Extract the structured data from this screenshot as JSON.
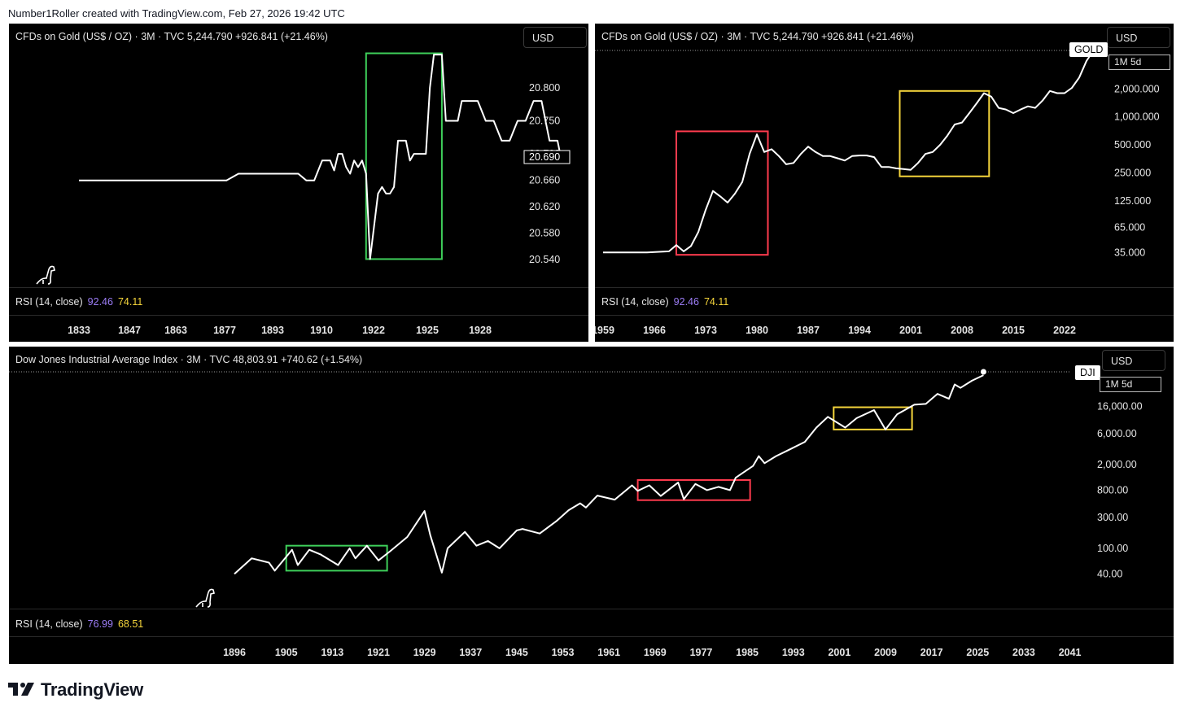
{
  "attribution": "Number1Roller created with TradingView.com, Feb 27, 2026 19:42 UTC",
  "brand": "TradingView",
  "colors": {
    "background": "#000000",
    "line": "#ffffff",
    "green": "#3ecf5a",
    "red": "#ff3b4e",
    "yellow": "#f5d53b",
    "rsi_purple": "#9c7df6",
    "rsi_yellow": "#f5d53b"
  },
  "panels": {
    "gold_early": {
      "header": "CFDs on Gold (US$ / OZ) · 3M · TVC  5,244.790  +926.841 (+21.46%)",
      "currency": "USD",
      "rsi_label": "RSI (14, close)",
      "rsi_value_1": "92.46",
      "rsi_value_2": "74.11",
      "last_price_label": "20.690",
      "highlight_icon": "dinosaur-icon"
    },
    "gold_modern": {
      "header": "CFDs on Gold (US$ / OZ) · 3M · TVC  5,244.790  +926.841 (+21.46%)",
      "currency": "USD",
      "symbol_label": "GOLD",
      "interval_label": "1M 5d",
      "rsi_label": "RSI (14, close)",
      "rsi_value_1": "92.46",
      "rsi_value_2": "74.11"
    },
    "dji": {
      "header": "Dow Jones Industrial Average Index · 3M · TVC  48,803.91  +740.62 (+1.54%)",
      "currency": "USD",
      "symbol_label": "DJI",
      "interval_label": "1M 5d",
      "rsi_label": "RSI (14, close)",
      "rsi_value_1": "76.99",
      "rsi_value_2": "68.51",
      "highlight_icon": "dinosaur-icon"
    }
  },
  "chart_data": [
    {
      "id": "gold_early",
      "type": "line",
      "series_name": "CFDs on Gold (US$ / OZ)",
      "x_ticks": [
        "1833",
        "1847",
        "1863",
        "1877",
        "1893",
        "1910",
        "1922",
        "1925",
        "1928"
      ],
      "y_ticks": [
        "20.800",
        "20.750",
        "20.700",
        "20.660",
        "20.620",
        "20.580",
        "20.540"
      ],
      "ylim": [
        20.528,
        20.86
      ],
      "points": [
        [
          0,
          20.66
        ],
        [
          10,
          20.66
        ],
        [
          20,
          20.66
        ],
        [
          30,
          20.66
        ],
        [
          37,
          20.66
        ],
        [
          40,
          20.67
        ],
        [
          50,
          20.67
        ],
        [
          55,
          20.67
        ],
        [
          57,
          20.66
        ],
        [
          59,
          20.66
        ],
        [
          61,
          20.69
        ],
        [
          63,
          20.69
        ],
        [
          64,
          20.675
        ],
        [
          65,
          20.7
        ],
        [
          66,
          20.7
        ],
        [
          67,
          20.68
        ],
        [
          68,
          20.67
        ],
        [
          69,
          20.69
        ],
        [
          70,
          20.68
        ],
        [
          71,
          20.69
        ],
        [
          72,
          20.67
        ],
        [
          73,
          20.541
        ],
        [
          75,
          20.64
        ],
        [
          76,
          20.65
        ],
        [
          77,
          20.64
        ],
        [
          78,
          20.64
        ],
        [
          79,
          20.65
        ],
        [
          80,
          20.72
        ],
        [
          81,
          20.72
        ],
        [
          82,
          20.72
        ],
        [
          83,
          20.69
        ],
        [
          84,
          20.7
        ],
        [
          85,
          20.7
        ],
        [
          86,
          20.7
        ],
        [
          87,
          20.7
        ],
        [
          88,
          20.8
        ],
        [
          89,
          20.85
        ],
        [
          90,
          20.85
        ],
        [
          91,
          20.85
        ],
        [
          92,
          20.75
        ],
        [
          94,
          20.75
        ],
        [
          95,
          20.75
        ],
        [
          96,
          20.78
        ],
        [
          98,
          20.78
        ],
        [
          100,
          20.78
        ],
        [
          102,
          20.75
        ],
        [
          104,
          20.75
        ],
        [
          106,
          20.72
        ],
        [
          108,
          20.72
        ],
        [
          110,
          20.75
        ],
        [
          112,
          20.75
        ],
        [
          114,
          20.78
        ],
        [
          116,
          20.78
        ],
        [
          118,
          20.72
        ],
        [
          120,
          20.72
        ],
        [
          121,
          20.69
        ]
      ],
      "highlights": [
        {
          "color": "green",
          "x_range": [
            72,
            91
          ],
          "y_range": [
            20.541,
            20.852
          ]
        }
      ]
    },
    {
      "id": "gold_modern",
      "type": "line",
      "scale": "log",
      "series_name": "CFDs on Gold (US$ / OZ)",
      "x_ticks": [
        "1959",
        "1966",
        "1973",
        "1980",
        "1987",
        "1994",
        "2001",
        "2008",
        "2015",
        "2022"
      ],
      "y_ticks": [
        "2,000.000",
        "1,000.000",
        "500.000",
        "250.000",
        "125.000",
        "65.000",
        "35.000"
      ],
      "ylim": [
        24,
        5500
      ],
      "points": [
        [
          1959,
          35
        ],
        [
          1965,
          35
        ],
        [
          1968,
          36
        ],
        [
          1969,
          42
        ],
        [
          1970,
          36
        ],
        [
          1971,
          41
        ],
        [
          1972,
          58
        ],
        [
          1973,
          100
        ],
        [
          1974,
          160
        ],
        [
          1975,
          140
        ],
        [
          1976,
          120
        ],
        [
          1977,
          150
        ],
        [
          1978,
          200
        ],
        [
          1979,
          400
        ],
        [
          1980,
          650
        ],
        [
          1981,
          420
        ],
        [
          1982,
          450
        ],
        [
          1983,
          380
        ],
        [
          1984,
          310
        ],
        [
          1985,
          320
        ],
        [
          1986,
          400
        ],
        [
          1987,
          480
        ],
        [
          1988,
          420
        ],
        [
          1989,
          380
        ],
        [
          1990,
          380
        ],
        [
          1991,
          360
        ],
        [
          1992,
          340
        ],
        [
          1993,
          380
        ],
        [
          1994,
          385
        ],
        [
          1995,
          385
        ],
        [
          1996,
          370
        ],
        [
          1997,
          290
        ],
        [
          1998,
          290
        ],
        [
          1999,
          280
        ],
        [
          2000,
          275
        ],
        [
          2001,
          270
        ],
        [
          2002,
          320
        ],
        [
          2003,
          400
        ],
        [
          2004,
          420
        ],
        [
          2005,
          500
        ],
        [
          2006,
          630
        ],
        [
          2007,
          830
        ],
        [
          2008,
          870
        ],
        [
          2009,
          1100
        ],
        [
          2010,
          1400
        ],
        [
          2011,
          1800
        ],
        [
          2012,
          1650
        ],
        [
          2013,
          1250
        ],
        [
          2014,
          1200
        ],
        [
          2015,
          1100
        ],
        [
          2016,
          1200
        ],
        [
          2017,
          1300
        ],
        [
          2018,
          1250
        ],
        [
          2019,
          1500
        ],
        [
          2020,
          1900
        ],
        [
          2021,
          1800
        ],
        [
          2022,
          1800
        ],
        [
          2023,
          2050
        ],
        [
          2024,
          2650
        ],
        [
          2025,
          4000
        ],
        [
          2026,
          5245
        ]
      ],
      "highlights": [
        {
          "color": "red",
          "x_range": [
            1969,
            1981.5
          ],
          "y_range": [
            33,
            700
          ]
        },
        {
          "color": "yellow",
          "x_range": [
            1999.5,
            2011.7
          ],
          "y_range": [
            230,
            1900
          ]
        }
      ]
    },
    {
      "id": "dji",
      "type": "line",
      "scale": "log",
      "series_name": "Dow Jones Industrial Average Index",
      "x_ticks": [
        "1896",
        "1905",
        "1913",
        "1921",
        "1929",
        "1937",
        "1945",
        "1953",
        "1961",
        "1969",
        "1977",
        "1985",
        "1993",
        "2001",
        "2009",
        "2017",
        "2025",
        "2033",
        "2041"
      ],
      "y_ticks": [
        "16,000.00",
        "6,000.00",
        "2,000.00",
        "800.00",
        "300.00",
        "100.00",
        "40.00"
      ],
      "ylim": [
        22,
        60000
      ],
      "points": [
        [
          1896,
          40
        ],
        [
          1899,
          70
        ],
        [
          1902,
          60
        ],
        [
          1903,
          45
        ],
        [
          1906,
          95
        ],
        [
          1907,
          55
        ],
        [
          1909,
          95
        ],
        [
          1911,
          80
        ],
        [
          1914,
          55
        ],
        [
          1916,
          100
        ],
        [
          1917,
          70
        ],
        [
          1919,
          110
        ],
        [
          1921,
          65
        ],
        [
          1923,
          90
        ],
        [
          1926,
          150
        ],
        [
          1929,
          380
        ],
        [
          1930,
          160
        ],
        [
          1932,
          42
        ],
        [
          1933,
          100
        ],
        [
          1936,
          180
        ],
        [
          1938,
          110
        ],
        [
          1940,
          130
        ],
        [
          1942,
          100
        ],
        [
          1945,
          190
        ],
        [
          1946,
          200
        ],
        [
          1949,
          170
        ],
        [
          1952,
          270
        ],
        [
          1954,
          390
        ],
        [
          1956,
          500
        ],
        [
          1957,
          430
        ],
        [
          1959,
          660
        ],
        [
          1962,
          570
        ],
        [
          1965,
          950
        ],
        [
          1966,
          780
        ],
        [
          1968,
          950
        ],
        [
          1970,
          650
        ],
        [
          1973,
          1050
        ],
        [
          1974,
          580
        ],
        [
          1976,
          1000
        ],
        [
          1978,
          800
        ],
        [
          1980,
          900
        ],
        [
          1982,
          800
        ],
        [
          1983,
          1250
        ],
        [
          1986,
          1900
        ],
        [
          1987,
          2700
        ],
        [
          1988,
          2100
        ],
        [
          1990,
          2700
        ],
        [
          1992,
          3300
        ],
        [
          1995,
          4500
        ],
        [
          1997,
          7500
        ],
        [
          1999,
          11000
        ],
        [
          2002,
          7500
        ],
        [
          2004,
          10500
        ],
        [
          2007,
          14000
        ],
        [
          2009,
          7000
        ],
        [
          2011,
          12000
        ],
        [
          2014,
          17000
        ],
        [
          2016,
          17500
        ],
        [
          2018,
          25000
        ],
        [
          2020,
          21000
        ],
        [
          2021,
          35000
        ],
        [
          2022,
          31000
        ],
        [
          2024,
          40000
        ],
        [
          2026,
          48804
        ]
      ],
      "highlights": [
        {
          "color": "green",
          "x_range": [
            1905,
            1922.5
          ],
          "y_range": [
            45,
            110
          ]
        },
        {
          "color": "red",
          "x_range": [
            1966,
            1985.5
          ],
          "y_range": [
            560,
            1150
          ]
        },
        {
          "color": "yellow",
          "x_range": [
            2000,
            2013.6
          ],
          "y_range": [
            7000,
            15500
          ]
        }
      ]
    }
  ]
}
